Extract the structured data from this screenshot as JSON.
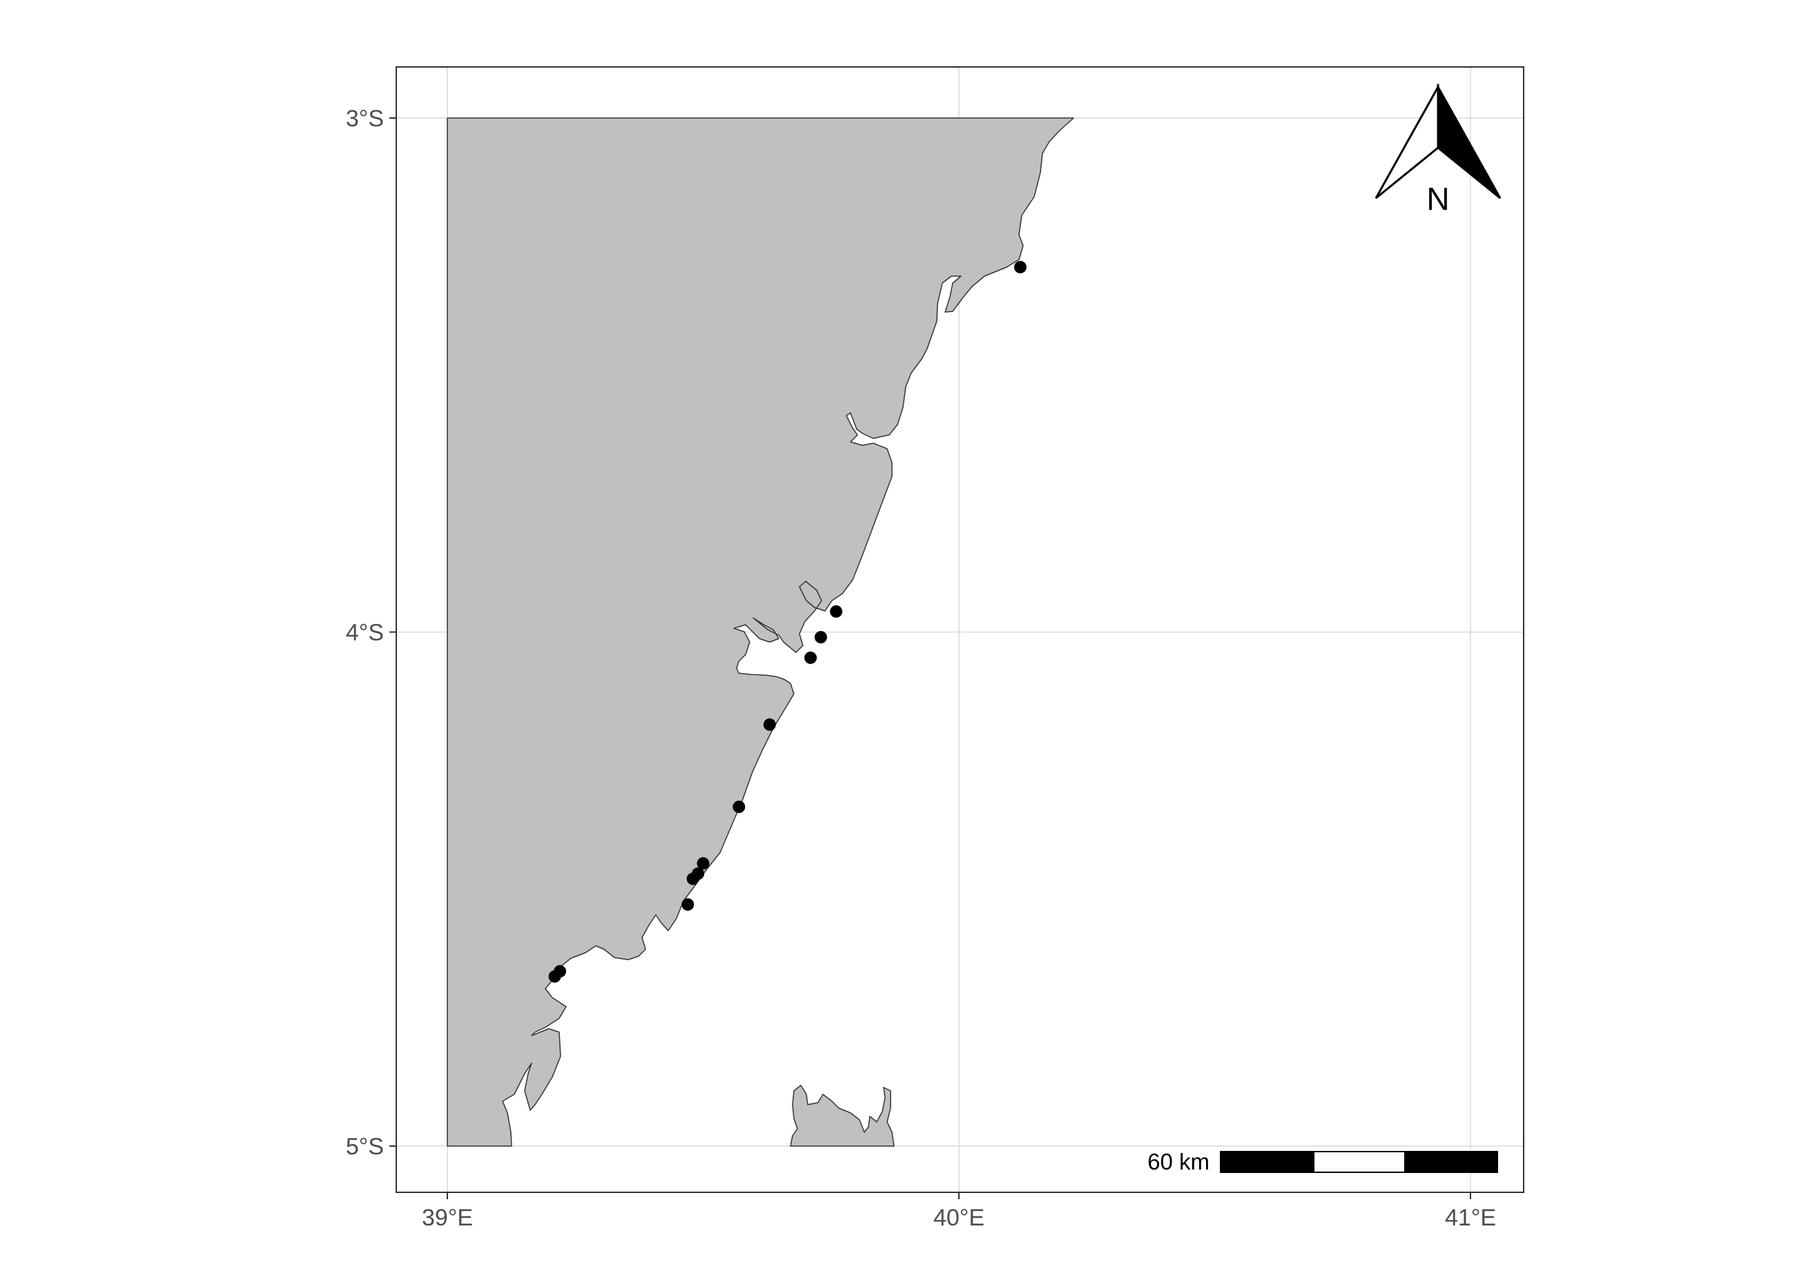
{
  "map": {
    "x_axis": {
      "range": [
        38.9,
        41.1
      ],
      "ticks": [
        {
          "value": 39,
          "label": "39°E"
        },
        {
          "value": 40,
          "label": "40°E"
        },
        {
          "value": 41,
          "label": "41°E"
        }
      ]
    },
    "y_axis": {
      "range": [
        -5.1,
        -2.9
      ],
      "ticks": [
        {
          "value": -3,
          "label": "3°S"
        },
        {
          "value": -4,
          "label": "4°S"
        },
        {
          "value": -5,
          "label": "5°S"
        }
      ]
    },
    "grid": true,
    "colors": {
      "land": "#c0c0c0",
      "land_outline": "#333333",
      "grid": "#d9d9d9",
      "panel_border": "#333333",
      "points": "#000000"
    },
    "north_arrow": {
      "label": "N",
      "placement": "top-right",
      "icon": "north-arrow-icon"
    },
    "scale_bar": {
      "label": "60 km",
      "placement": "bottom-right"
    },
    "sites": [
      {
        "lon": 40.12,
        "lat": -3.29
      },
      {
        "lon": 39.76,
        "lat": -3.96
      },
      {
        "lon": 39.73,
        "lat": -4.01
      },
      {
        "lon": 39.71,
        "lat": -4.05
      },
      {
        "lon": 39.63,
        "lat": -4.18
      },
      {
        "lon": 39.57,
        "lat": -4.34
      },
      {
        "lon": 39.5,
        "lat": -4.45
      },
      {
        "lon": 39.49,
        "lat": -4.47
      },
      {
        "lon": 39.48,
        "lat": -4.48
      },
      {
        "lon": 39.47,
        "lat": -4.53
      },
      {
        "lon": 39.22,
        "lat": -4.66
      },
      {
        "lon": 39.21,
        "lat": -4.67
      }
    ]
  }
}
